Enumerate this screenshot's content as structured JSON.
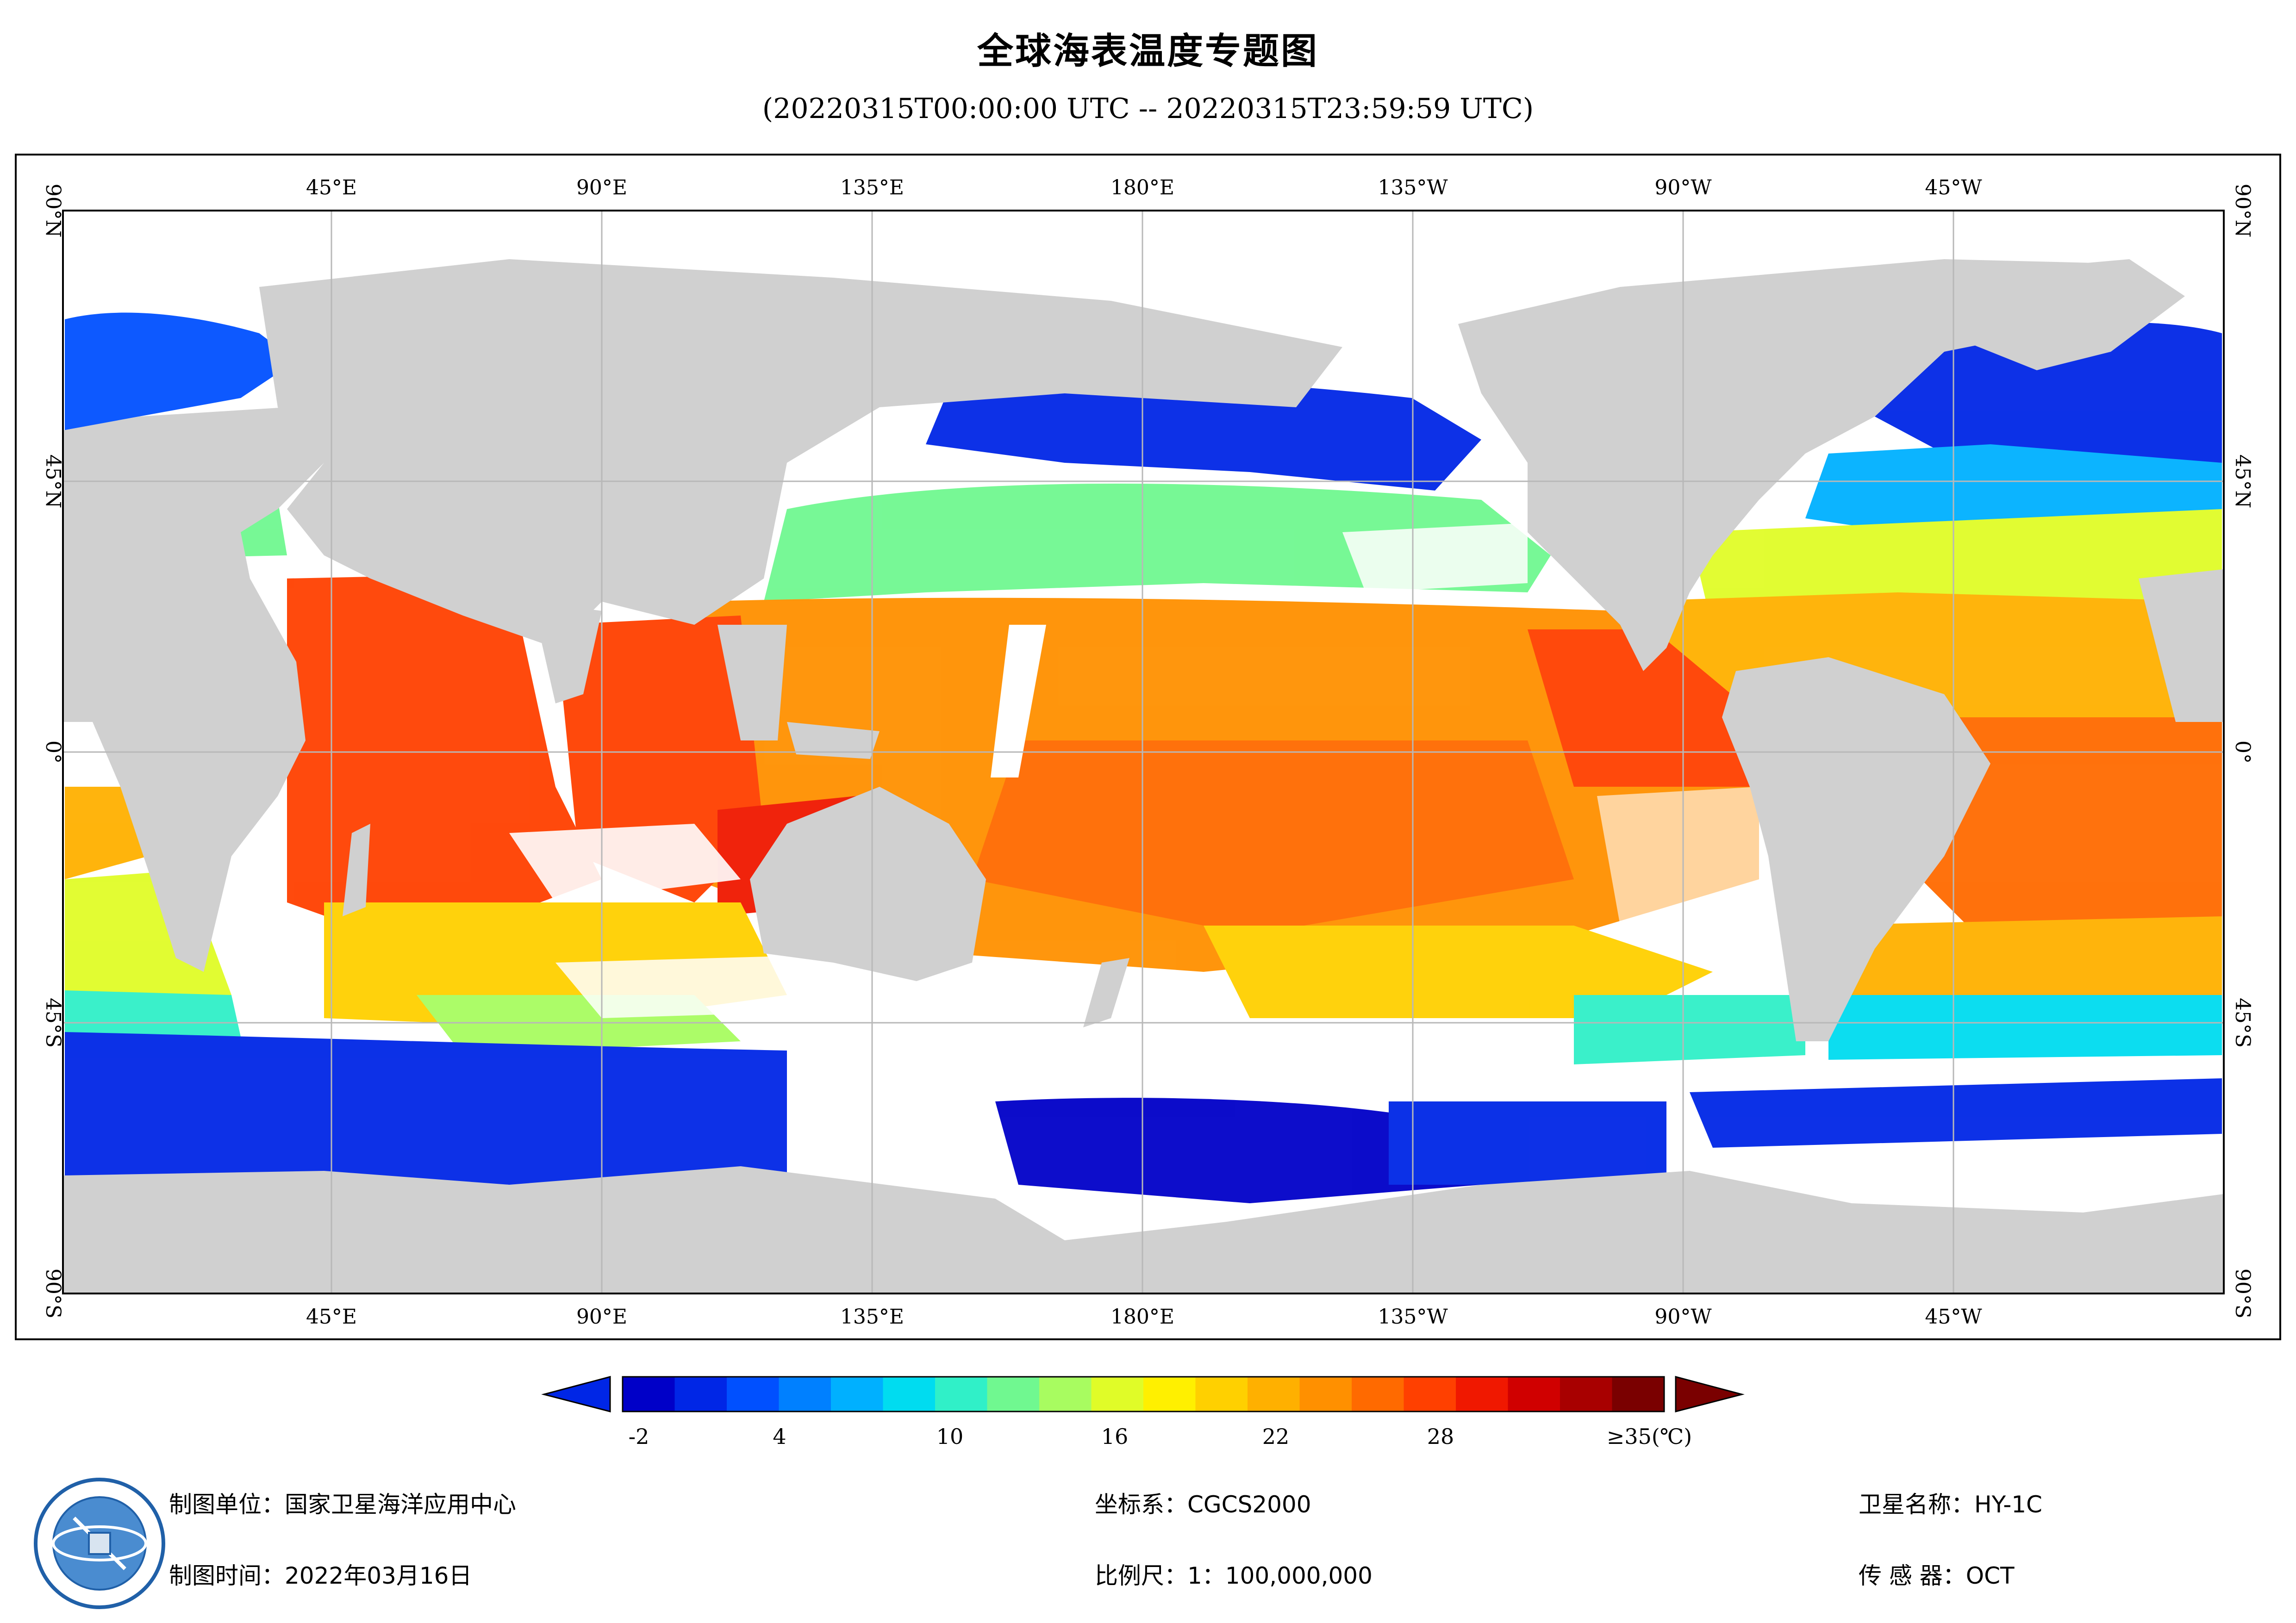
{
  "title": "全球海表温度专题图",
  "subtitle": "(20220315T00:00:00 UTC -- 20220315T23:59:59 UTC)",
  "lon_labels": [
    "45°E",
    "90°E",
    "135°E",
    "180°E",
    "135°W",
    "90°W",
    "45°W"
  ],
  "lat_labels": [
    "90°N",
    "45°N",
    "0°",
    "45°S",
    "90°S"
  ],
  "colorbar": {
    "tick_labels": [
      "-2",
      "4",
      "10",
      "16",
      "22",
      "28",
      "≥35(℃)"
    ],
    "colors": [
      "#0000c8",
      "#0026e6",
      "#0050ff",
      "#0080ff",
      "#00b0ff",
      "#00dcf0",
      "#30f0c8",
      "#70f890",
      "#a8fc60",
      "#e0fc28",
      "#fff000",
      "#ffd000",
      "#ffb000",
      "#ff9000",
      "#ff6a00",
      "#ff4000",
      "#f01800",
      "#d00000",
      "#a80000",
      "#7a0000"
    ]
  },
  "footer": {
    "unit": "制图单位：国家卫星海洋应用中心",
    "time": "制图时间：2022年03月16日",
    "crs": "坐标系：CGCS2000",
    "scale": "比例尺：1：100,000,000",
    "satellite": "卫星名称：HY-1C",
    "sensor": "传 感 器：OCT"
  },
  "colors": {
    "land": "#d0d0d0",
    "nodata": "#ffffff",
    "grid": "#b8b8b8"
  }
}
